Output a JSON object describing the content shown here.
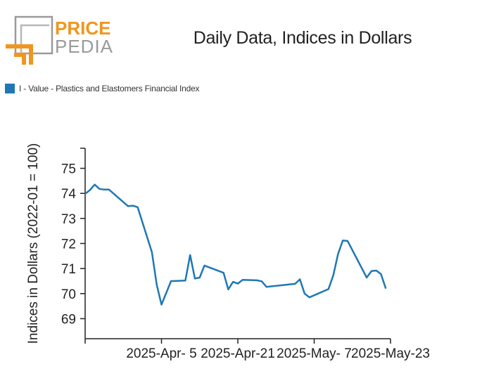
{
  "logo": {
    "word1": "PRICE",
    "word2": "PEDIA"
  },
  "chart_data": {
    "type": "line",
    "title": "Daily Data, Indices in Dollars",
    "ylabel": "Indices in Dollars (2022-01 = 100)",
    "xlabel": "",
    "ylim": [
      68.2,
      75.8
    ],
    "xlim": [
      "2025-03-20",
      "2025-05-23"
    ],
    "yticks": [
      69,
      70,
      71,
      72,
      73,
      74,
      75
    ],
    "xticks": [
      {
        "date": "2025-04-05",
        "label": "2025-Apr- 5"
      },
      {
        "date": "2025-04-21",
        "label": "2025-Apr-21"
      },
      {
        "date": "2025-05-07",
        "label": "2025-May- 7"
      },
      {
        "date": "2025-05-23",
        "label": "2025-May-23"
      }
    ],
    "grid": false,
    "legend_position": "top-left",
    "series": [
      {
        "name": "I - Value - Plastics and Elastomers Financial Index",
        "color": "#1f77b4",
        "points": [
          [
            "2025-03-20",
            73.98
          ],
          [
            "2025-03-21",
            74.13
          ],
          [
            "2025-03-22",
            74.35
          ],
          [
            "2025-03-23",
            74.18
          ],
          [
            "2025-03-24",
            74.15
          ],
          [
            "2025-03-25",
            74.15
          ],
          [
            "2025-03-29",
            73.49
          ],
          [
            "2025-03-30",
            73.51
          ],
          [
            "2025-03-31",
            73.45
          ],
          [
            "2025-04-03",
            71.65
          ],
          [
            "2025-04-04",
            70.36
          ],
          [
            "2025-04-05",
            69.56
          ],
          [
            "2025-04-07",
            70.5
          ],
          [
            "2025-04-10",
            70.52
          ],
          [
            "2025-04-11",
            71.54
          ],
          [
            "2025-04-12",
            70.6
          ],
          [
            "2025-04-13",
            70.64
          ],
          [
            "2025-04-14",
            71.12
          ],
          [
            "2025-04-18",
            70.83
          ],
          [
            "2025-04-19",
            70.17
          ],
          [
            "2025-04-20",
            70.47
          ],
          [
            "2025-04-21",
            70.4
          ],
          [
            "2025-04-22",
            70.55
          ],
          [
            "2025-04-25",
            70.53
          ],
          [
            "2025-04-26",
            70.49
          ],
          [
            "2025-04-27",
            70.27
          ],
          [
            "2025-05-03",
            70.39
          ],
          [
            "2025-05-04",
            70.57
          ],
          [
            "2025-05-05",
            70.0
          ],
          [
            "2025-05-06",
            69.85
          ],
          [
            "2025-05-10",
            70.18
          ],
          [
            "2025-05-11",
            70.72
          ],
          [
            "2025-05-12",
            71.58
          ],
          [
            "2025-05-13",
            72.12
          ],
          [
            "2025-05-14",
            72.1
          ],
          [
            "2025-05-18",
            70.64
          ],
          [
            "2025-05-19",
            70.9
          ],
          [
            "2025-05-20",
            70.92
          ],
          [
            "2025-05-21",
            70.78
          ],
          [
            "2025-05-22",
            70.21
          ]
        ]
      }
    ]
  }
}
